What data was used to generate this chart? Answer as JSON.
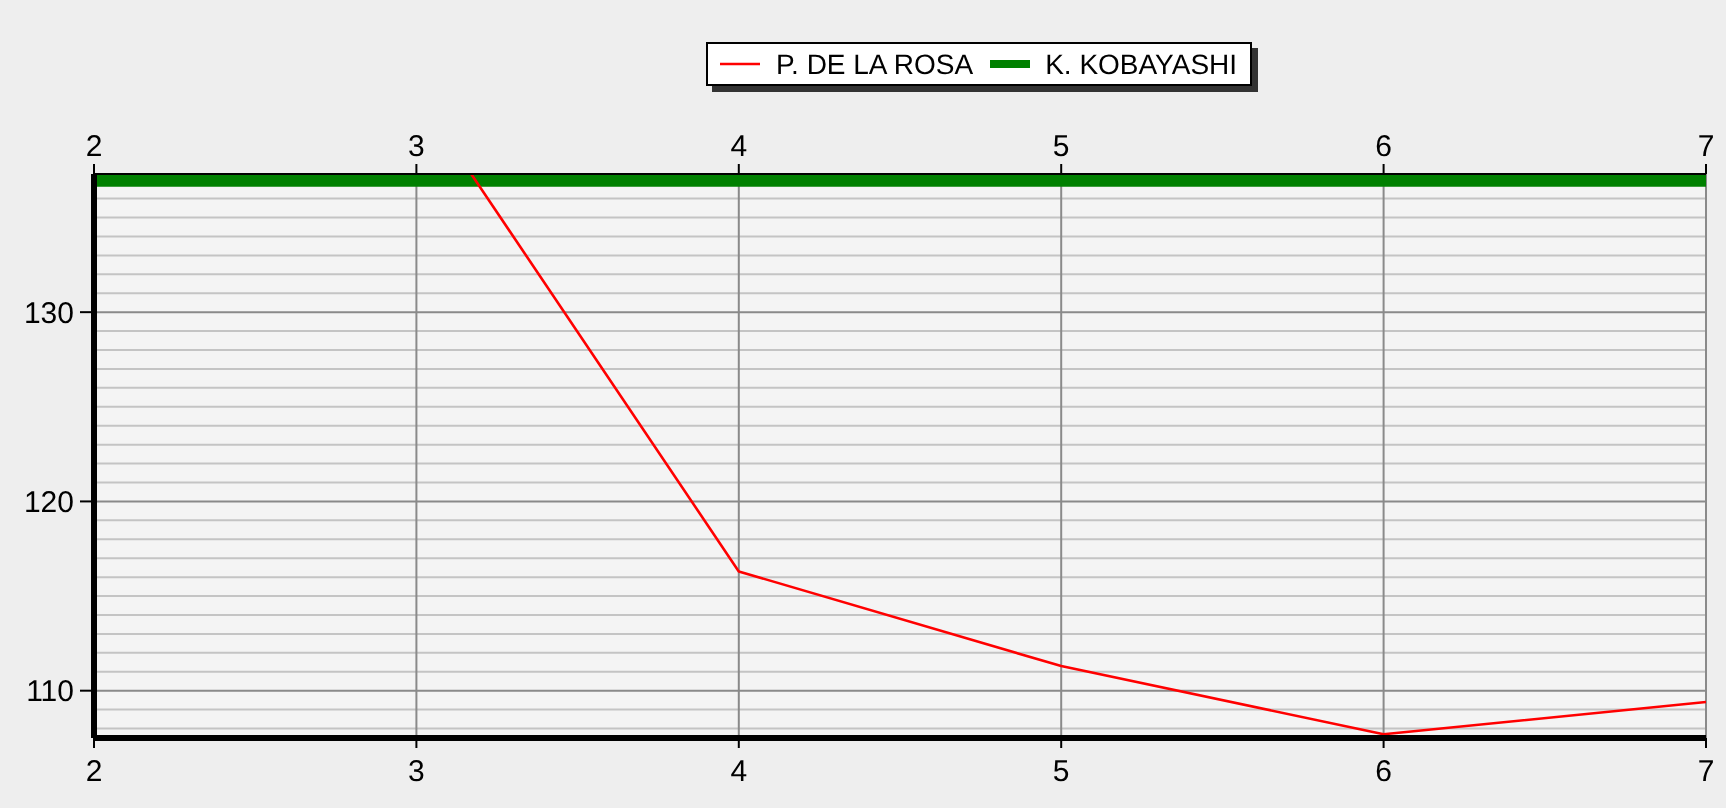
{
  "chart_data": {
    "type": "line",
    "legend": "top",
    "grid": true,
    "marker": "none",
    "xlim": [
      2,
      7
    ],
    "xticks": [
      2,
      3,
      4,
      5,
      6,
      7
    ],
    "x2lim": [
      2,
      7
    ],
    "x2ticks": [
      2,
      3,
      4,
      5,
      6,
      7
    ],
    "ylim": [
      107.5,
      137.3
    ],
    "yticks": [
      {
        "value": 108,
        "label": null
      },
      {
        "value": 109,
        "label": null
      },
      110,
      {
        "value": 111,
        "label": null
      },
      {
        "value": 112,
        "label": null
      },
      {
        "value": 113,
        "label": null
      },
      {
        "value": 114,
        "label": null
      },
      {
        "value": 115,
        "label": null
      },
      {
        "value": 116,
        "label": null
      },
      {
        "value": 117,
        "label": null
      },
      {
        "value": 118,
        "label": null
      },
      {
        "value": 119,
        "label": null
      },
      120,
      {
        "value": 121,
        "label": null
      },
      {
        "value": 122,
        "label": null
      },
      {
        "value": 123,
        "label": null
      },
      {
        "value": 124,
        "label": null
      },
      {
        "value": 125,
        "label": null
      },
      {
        "value": 126,
        "label": null
      },
      {
        "value": 127,
        "label": null
      },
      {
        "value": 128,
        "label": null
      },
      {
        "value": 129,
        "label": null
      },
      130,
      {
        "value": 131,
        "label": null
      },
      {
        "value": 132,
        "label": null
      },
      {
        "value": 133,
        "label": null
      },
      {
        "value": 134,
        "label": null
      },
      {
        "value": 135,
        "label": null
      },
      {
        "value": 136,
        "label": null
      }
    ],
    "series": [
      {
        "name": "P. DE LA ROSA",
        "color": "#ff0000",
        "x": [
          3.17,
          4,
          5,
          6,
          7
        ],
        "values": [
          137.3,
          116.3,
          111.3,
          107.7,
          109.4
        ]
      },
      {
        "name": "K. KOBAYASHI",
        "color": "#008000",
        "x": [
          2,
          3,
          4,
          5,
          6,
          7
        ],
        "values": [
          137,
          137,
          137,
          137,
          137,
          137
        ]
      }
    ]
  }
}
